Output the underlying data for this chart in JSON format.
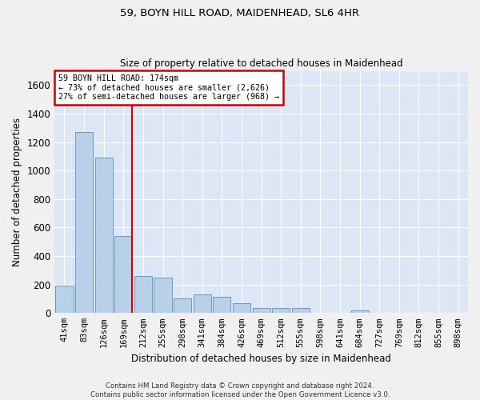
{
  "title_line1": "59, BOYN HILL ROAD, MAIDENHEAD, SL6 4HR",
  "title_line2": "Size of property relative to detached houses in Maidenhead",
  "xlabel": "Distribution of detached houses by size in Maidenhead",
  "ylabel": "Number of detached properties",
  "categories": [
    "41sqm",
    "83sqm",
    "126sqm",
    "169sqm",
    "212sqm",
    "255sqm",
    "298sqm",
    "341sqm",
    "384sqm",
    "426sqm",
    "469sqm",
    "512sqm",
    "555sqm",
    "598sqm",
    "641sqm",
    "684sqm",
    "727sqm",
    "769sqm",
    "812sqm",
    "855sqm",
    "898sqm"
  ],
  "values": [
    190,
    1270,
    1090,
    540,
    260,
    250,
    100,
    130,
    115,
    70,
    35,
    35,
    35,
    0,
    0,
    20,
    0,
    0,
    0,
    0,
    0
  ],
  "bar_color": "#b8d0e8",
  "bar_edge_color": "#6699cc",
  "background_color": "#dce6f5",
  "grid_color": "#ffffff",
  "annotation_box_text_line1": "59 BOYN HILL ROAD: 174sqm",
  "annotation_box_text_line2": "← 73% of detached houses are smaller (2,626)",
  "annotation_box_text_line3": "27% of semi-detached houses are larger (968) →",
  "annotation_box_color": "#ffffff",
  "annotation_box_edge_color": "#cc0000",
  "marker_line_color": "#cc0000",
  "marker_line_index": 3.425,
  "ylim": [
    0,
    1700
  ],
  "yticks": [
    0,
    200,
    400,
    600,
    800,
    1000,
    1200,
    1400,
    1600
  ],
  "fig_facecolor": "#f0f0f0",
  "footer_line1": "Contains HM Land Registry data © Crown copyright and database right 2024.",
  "footer_line2": "Contains public sector information licensed under the Open Government Licence v3.0."
}
